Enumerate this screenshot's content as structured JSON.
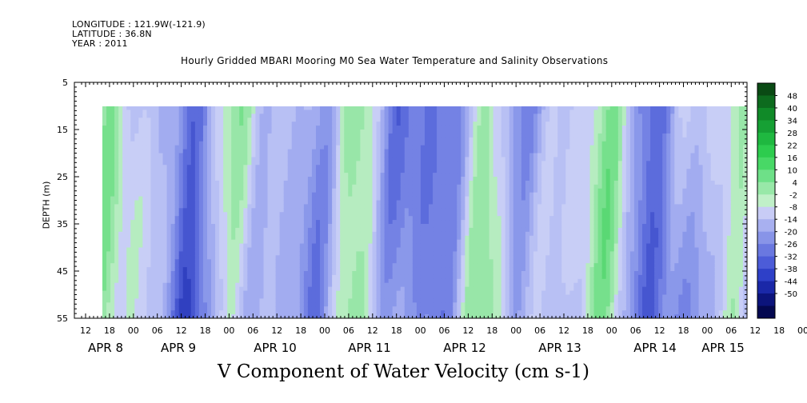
{
  "header": {
    "longitude": "LONGITUDE : 121.9W(-121.9)",
    "latitude": "LATITUDE : 36.8N",
    "year": "YEAR : 2011"
  },
  "chart_data": {
    "type": "heatmap",
    "title": "Hourly Gridded MBARI Mooring M0 Sea Water Temperature and Salinity Observations",
    "ylabel": "DEPTH (m)",
    "xlabel": "V Component of Water Velocity (cm s-1)",
    "ylim": [
      55,
      5
    ],
    "yticks": [
      5,
      15,
      25,
      35,
      45,
      55
    ],
    "x_hour_ticks": [
      "12",
      "18",
      "00",
      "06",
      "12",
      "18",
      "00",
      "06",
      "12",
      "18",
      "00",
      "06",
      "12",
      "18",
      "00",
      "06",
      "12",
      "18",
      "00",
      "06",
      "12",
      "18",
      "00",
      "06",
      "12",
      "18",
      "00",
      "06",
      "12",
      "18",
      "00",
      "06"
    ],
    "x_day_labels": [
      "APR 8",
      "APR 9",
      "APR 10",
      "APR 11",
      "APR 12",
      "APR 13",
      "APR 14",
      "APR 15"
    ],
    "data_depth_range": [
      10,
      55
    ],
    "colorbar": {
      "ticks": [
        48,
        40,
        34,
        28,
        22,
        16,
        10,
        4,
        -2,
        -8,
        -14,
        -20,
        -26,
        -32,
        -38,
        -44,
        -50
      ],
      "colors": [
        "#0a4a14",
        "#0d6b1e",
        "#108a28",
        "#16a034",
        "#1fb840",
        "#2dcc4e",
        "#48d866",
        "#6ee088",
        "#98e8a8",
        "#c0f0c8",
        "#c8ccf6",
        "#a8b0f0",
        "#8894e8",
        "#6a78e0",
        "#4c5cd8",
        "#2e40c8",
        "#1a28a8",
        "#0c147c",
        "#040850"
      ]
    },
    "grid": false
  }
}
